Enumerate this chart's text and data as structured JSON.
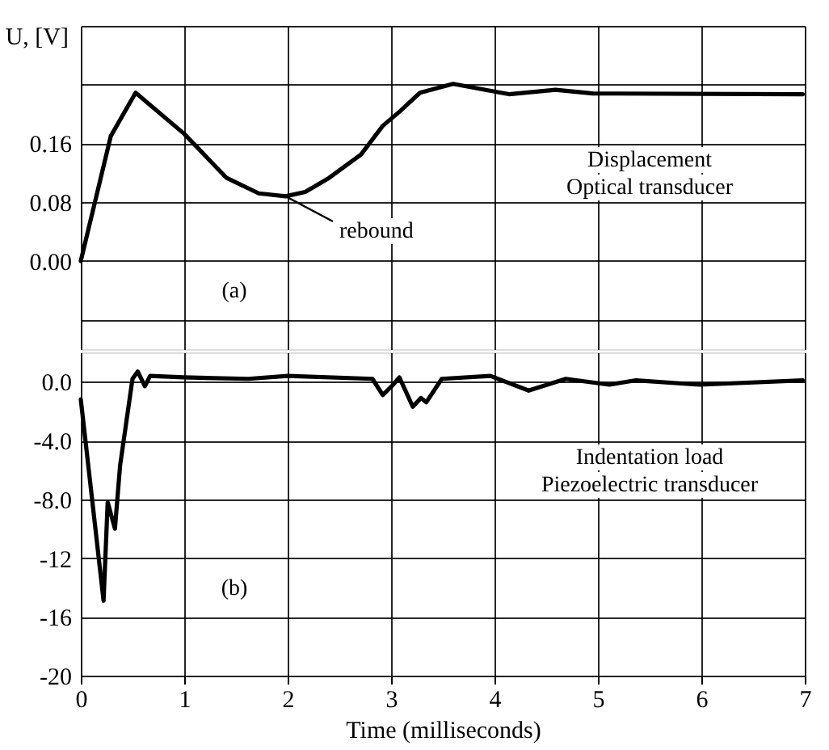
{
  "chart_data": [
    {
      "type": "line",
      "ylabel": "U, [V]",
      "xlim": [
        0,
        7
      ],
      "xticks": [
        {
          "value": 0,
          "label": null
        },
        {
          "value": 1,
          "label": null
        },
        {
          "value": 2,
          "label": null
        },
        {
          "value": 3,
          "label": null
        },
        {
          "value": 4,
          "label": null
        },
        {
          "value": 5,
          "label": null
        },
        {
          "value": 6,
          "label": null
        },
        {
          "value": 7,
          "label": null
        }
      ],
      "ylim": [
        -0.12,
        0.32
      ],
      "yticks": [
        {
          "value": -0.08,
          "label": null
        },
        {
          "value": 0,
          "label": "0.00"
        },
        0.08,
        0.16,
        {
          "value": 0.24,
          "label": null
        },
        {
          "value": 0.32,
          "label": null
        }
      ],
      "tick_labels": "y",
      "grid": true,
      "line_style": "solid",
      "marker": "none",
      "series": [
        {
          "color": "#000000",
          "x": [
            0,
            0.29,
            0.53,
            1.0,
            1.41,
            1.72,
            1.98,
            2.17,
            2.4,
            2.71,
            2.92,
            3.08,
            3.28,
            3.6,
            4.02,
            4.14,
            4.59,
            4.95,
            6.98
          ],
          "values": [
            0,
            0.17,
            0.229,
            0.173,
            0.113,
            0.092,
            0.088,
            0.094,
            0.113,
            0.145,
            0.184,
            0.203,
            0.229,
            0.241,
            0.23,
            0.227,
            0.233,
            0.228,
            0.227
          ]
        }
      ],
      "annotations": [
        "(a)",
        "Displacement",
        "Optical transducer",
        {
          "text": "rebound",
          "x": 1.98,
          "y": 0.088
        }
      ]
    },
    {
      "type": "line",
      "xlabel": "Time (milliseconds)",
      "xlim": [
        0,
        7
      ],
      "xticks": [
        0,
        1,
        2,
        3,
        4,
        5,
        6,
        7
      ],
      "ylim": [
        -20,
        2
      ],
      "yticks": [
        {
          "value": 0,
          "label": "0.0"
        },
        {
          "value": -4,
          "label": "-4.0"
        },
        {
          "value": -8,
          "label": "-8.0"
        },
        -12,
        -16,
        -20
      ],
      "grid": true,
      "line_style": "solid",
      "marker": "none",
      "series": [
        {
          "color": "#000000",
          "x": [
            0,
            0.22,
            0.26,
            0.33,
            0.38,
            0.5,
            0.55,
            0.62,
            0.67,
            0.99,
            1.62,
            2.0,
            2.82,
            2.92,
            3.02,
            3.08,
            3.21,
            3.29,
            3.34,
            3.49,
            3.96,
            4.33,
            4.69,
            5.11,
            5.37,
            5.98,
            6.98
          ],
          "values": [
            -1.2,
            -14.9,
            -8.2,
            -10.0,
            -5.7,
            0.2,
            0.7,
            -0.3,
            0.4,
            0.3,
            0.2,
            0.4,
            0.2,
            -0.9,
            -0.2,
            0.3,
            -1.7,
            -1.1,
            -1.4,
            0.2,
            0.4,
            -0.6,
            0.2,
            -0.2,
            0.1,
            -0.2,
            0.1
          ]
        }
      ],
      "annotations": [
        "(b)",
        "Indentation load",
        "Piezoelectric transducer"
      ]
    }
  ]
}
